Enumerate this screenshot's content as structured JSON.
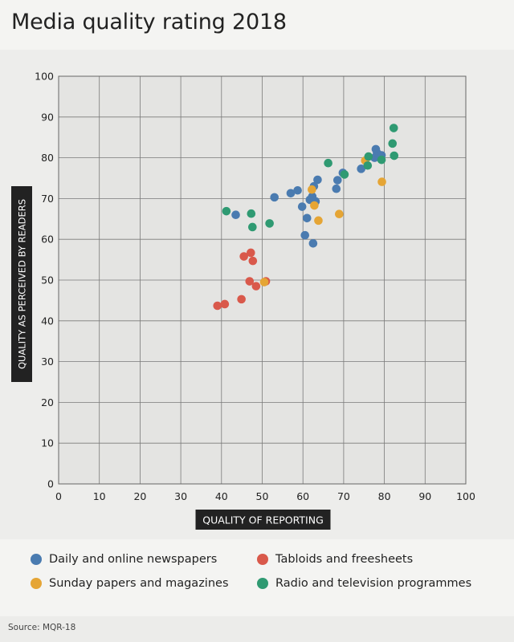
{
  "title": "Media quality rating 2018",
  "source": "Source: MQR-18",
  "colors": {
    "Daily and online newspapers": "#4a7bb0",
    "Tabloids and freesheets": "#d9594b",
    "Sunday papers and magazines": "#e5a535",
    "Radio and television programmes": "#2f9a72"
  },
  "legend": [
    {
      "label": "Daily and online newspapers",
      "color": "#4a7bb0"
    },
    {
      "label": "Tabloids and freesheets",
      "color": "#d9594b"
    },
    {
      "label": "Sunday papers and magazines",
      "color": "#e5a535"
    },
    {
      "label": "Radio and television programmes",
      "color": "#2f9a72"
    }
  ],
  "chart_data": {
    "type": "scatter",
    "xlabel": "QUALITY OF REPORTING",
    "ylabel": "QUALITY AS PERCEIVED BY READERS",
    "xlim": [
      0,
      100
    ],
    "ylim": [
      0,
      100
    ],
    "xticks": [
      0,
      10,
      20,
      30,
      40,
      50,
      60,
      70,
      80,
      90,
      100
    ],
    "yticks": [
      0,
      10,
      20,
      30,
      40,
      50,
      60,
      70,
      80,
      90,
      100
    ],
    "grid": true,
    "legend_position": "bottom",
    "series": [
      {
        "name": "Daily and online newspapers",
        "points": [
          [
            43.5,
            66
          ],
          [
            53,
            70.3
          ],
          [
            57,
            71.3
          ],
          [
            58.7,
            72
          ],
          [
            59.8,
            68
          ],
          [
            60.5,
            61
          ],
          [
            61,
            65.2
          ],
          [
            61.7,
            69.7
          ],
          [
            62.3,
            70.5
          ],
          [
            62.7,
            73
          ],
          [
            63.1,
            69.3
          ],
          [
            63.6,
            74.6
          ],
          [
            62.5,
            59
          ],
          [
            68.2,
            72.4
          ],
          [
            68.5,
            74.5
          ],
          [
            69.8,
            76.3
          ],
          [
            74.3,
            77.3
          ],
          [
            77.6,
            80
          ],
          [
            77.9,
            82.1
          ],
          [
            78.2,
            81.2
          ],
          [
            79.3,
            80.6
          ]
        ]
      },
      {
        "name": "Tabloids and freesheets",
        "points": [
          [
            39,
            43.7
          ],
          [
            40.8,
            44.1
          ],
          [
            44.9,
            45.3
          ],
          [
            45.5,
            55.8
          ],
          [
            46.9,
            49.7
          ],
          [
            47.2,
            56.7
          ],
          [
            47.7,
            54.7
          ],
          [
            48.5,
            48.5
          ],
          [
            50.9,
            49.7
          ]
        ]
      },
      {
        "name": "Sunday papers and magazines",
        "points": [
          [
            50.5,
            49.5
          ],
          [
            62.2,
            72.2
          ],
          [
            62.8,
            68.3
          ],
          [
            63.8,
            64.6
          ],
          [
            68.9,
            66.2
          ],
          [
            75.3,
            79.3
          ],
          [
            79.4,
            74.1
          ]
        ]
      },
      {
        "name": "Radio and television programmes",
        "points": [
          [
            41.2,
            66.9
          ],
          [
            47.3,
            66.3
          ],
          [
            47.6,
            63
          ],
          [
            51.8,
            63.9
          ],
          [
            66.2,
            78.7
          ],
          [
            70.2,
            75.9
          ],
          [
            75.9,
            78.1
          ],
          [
            76.1,
            80.3
          ],
          [
            79.3,
            79.5
          ],
          [
            82,
            83.5
          ],
          [
            82.3,
            87.3
          ],
          [
            82.4,
            80.5
          ]
        ]
      }
    ]
  }
}
